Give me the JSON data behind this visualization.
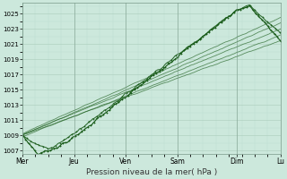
{
  "xlabel": "Pression niveau de la mer( hPa )",
  "bg_color": "#cce8dc",
  "plot_bg_color": "#cce8dc",
  "grid_color_major": "#aaccbb",
  "grid_color_minor": "#bbddd0",
  "line_color": "#1a5c1a",
  "ylim": [
    1006.5,
    1026.5
  ],
  "yticks": [
    1007,
    1009,
    1011,
    1013,
    1015,
    1017,
    1019,
    1021,
    1023,
    1025
  ],
  "x_labels": [
    "Mer",
    "Jeu",
    "Ven",
    "Sam",
    "Dim",
    "Lu"
  ],
  "x_fractions": [
    0.0,
    0.2,
    0.4,
    0.6,
    0.83,
    1.0
  ],
  "total_points": 250
}
